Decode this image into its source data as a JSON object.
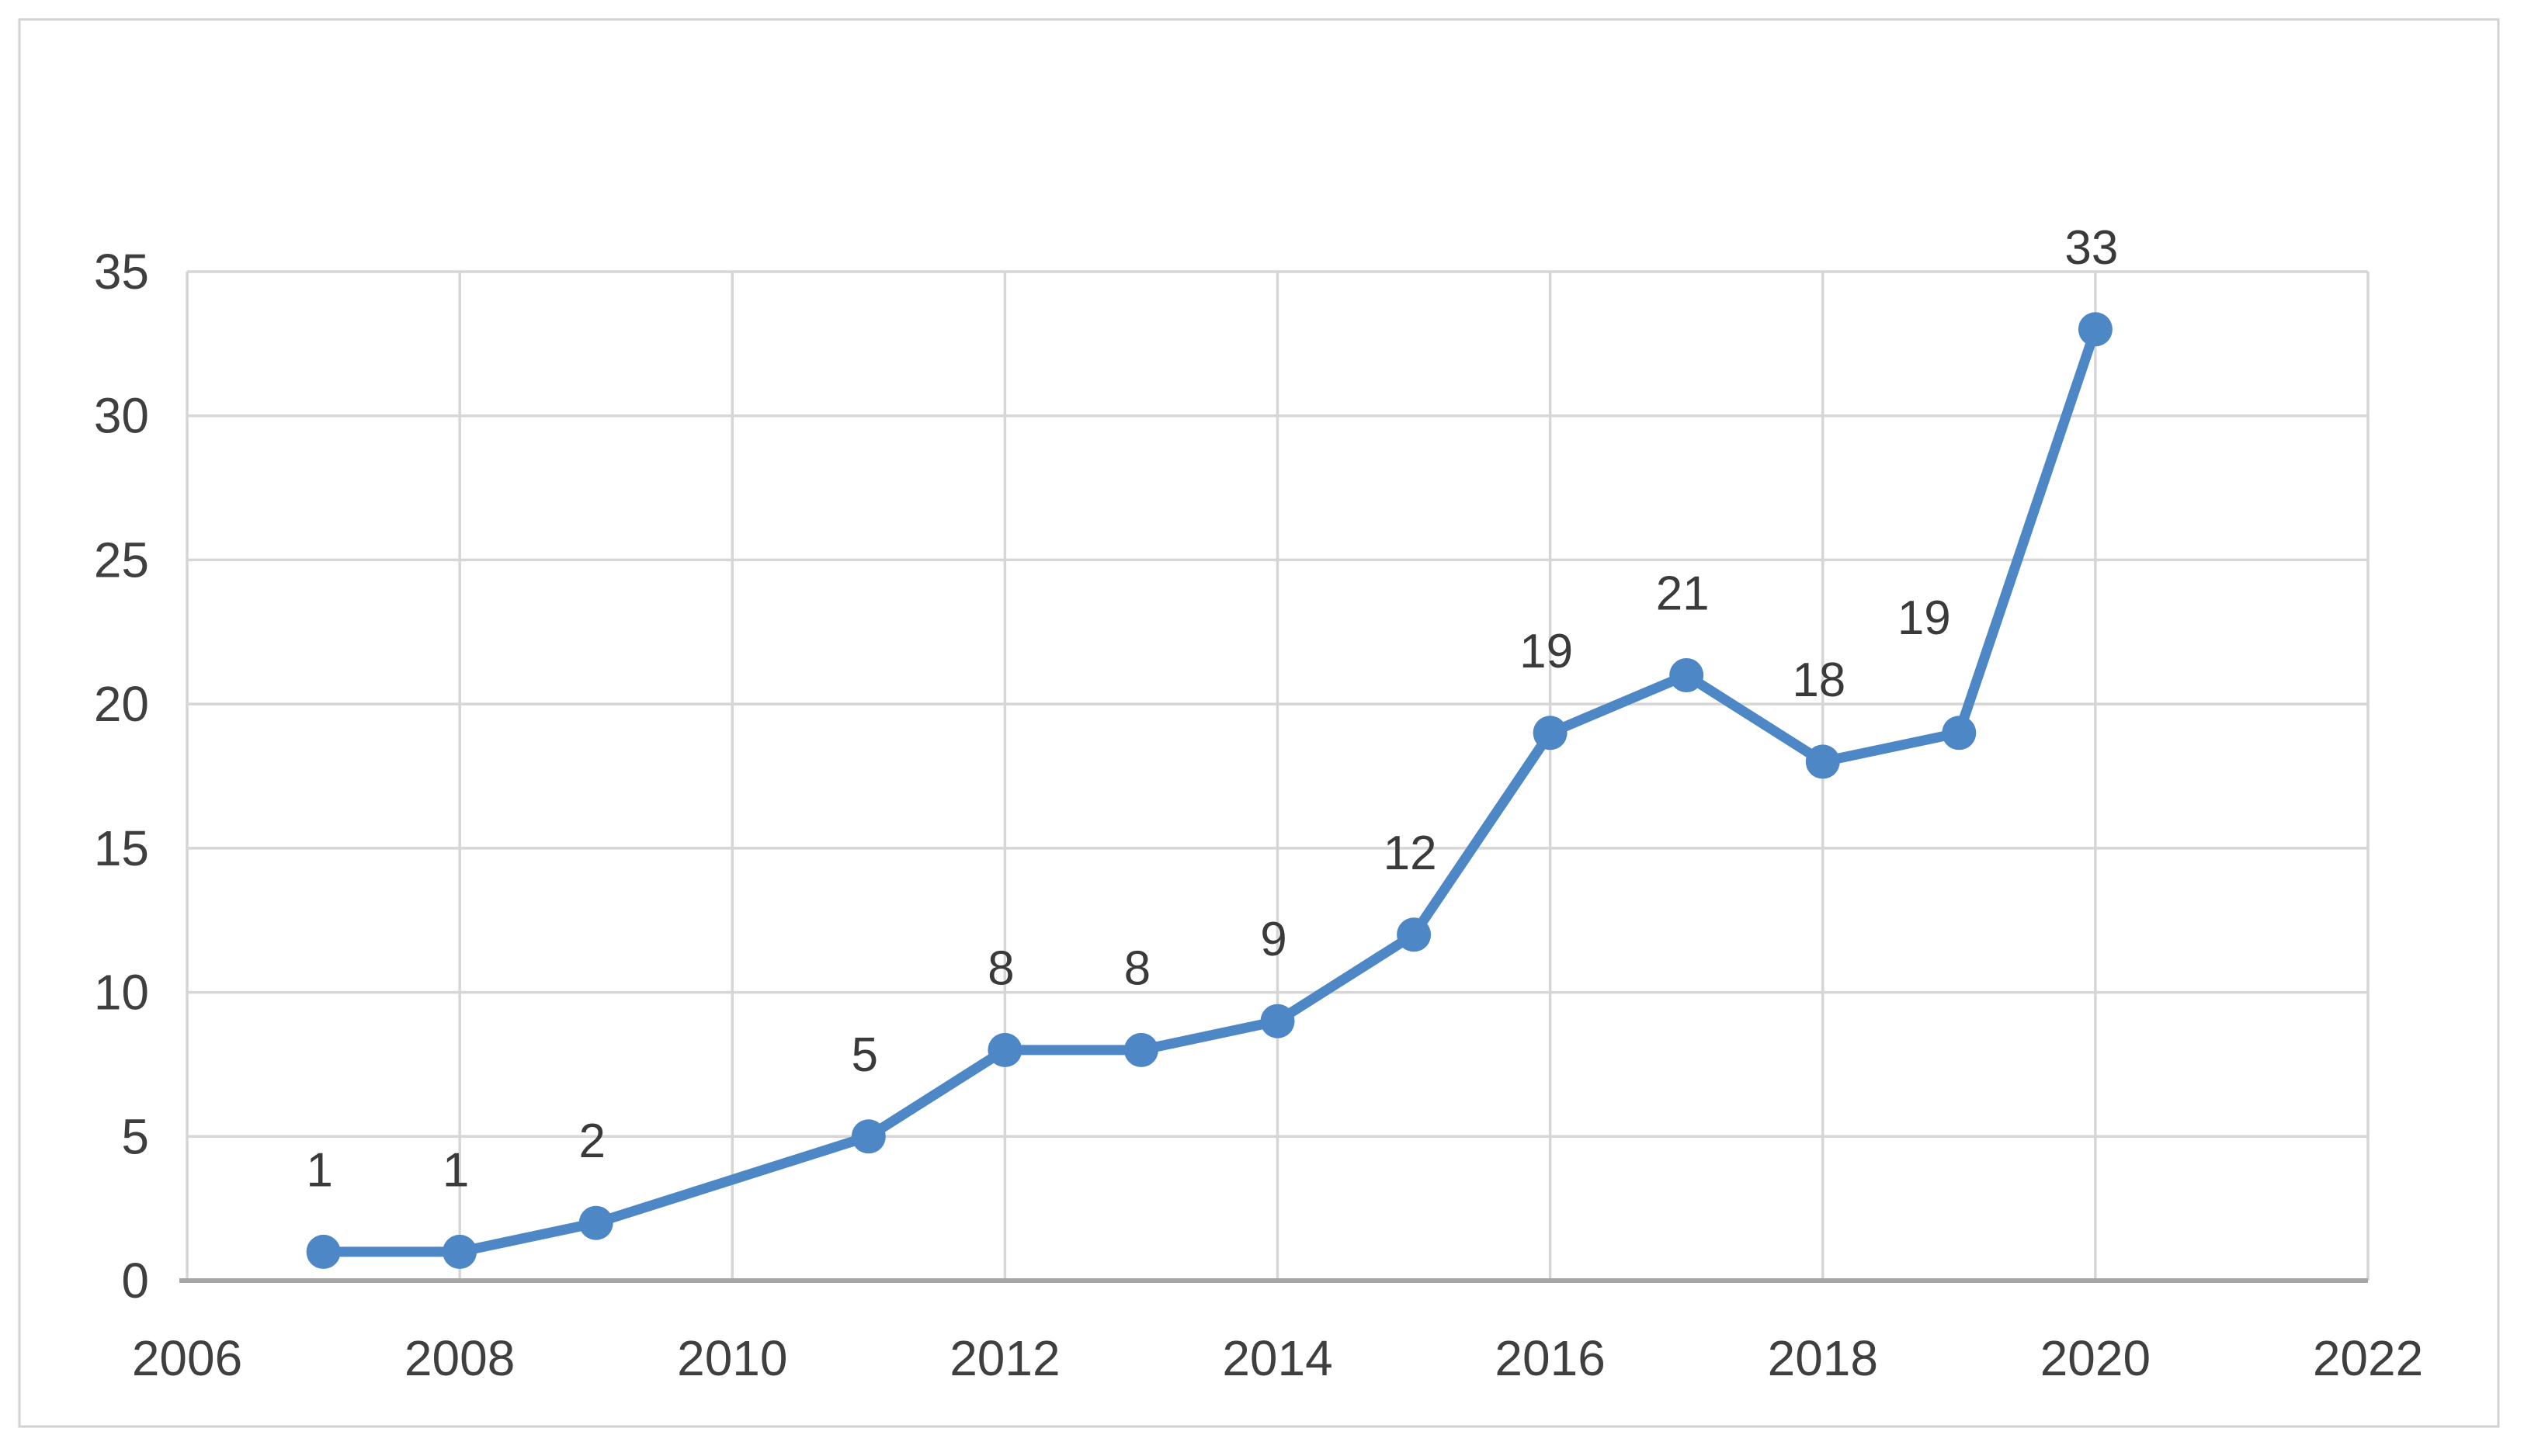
{
  "figure": {
    "background_color": "#ffffff",
    "border_color": "#d2d2d2"
  },
  "chart_data": {
    "type": "line",
    "title": "",
    "xlabel": "",
    "ylabel": "",
    "series": [
      {
        "name": "publications-per-year",
        "points": [
          {
            "x": 2007,
            "y": 1
          },
          {
            "x": 2008,
            "y": 1
          },
          {
            "x": 2009,
            "y": 2
          },
          {
            "x": 2011,
            "y": 5
          },
          {
            "x": 2012,
            "y": 8
          },
          {
            "x": 2013,
            "y": 8
          },
          {
            "x": 2014,
            "y": 9
          },
          {
            "x": 2015,
            "y": 12
          },
          {
            "x": 2016,
            "y": 19
          },
          {
            "x": 2017,
            "y": 21
          },
          {
            "x": 2018,
            "y": 18
          },
          {
            "x": 2019,
            "y": 19
          },
          {
            "x": 2020,
            "y": 33
          }
        ],
        "data_labels": [
          "1",
          "1",
          "2",
          "5",
          "8",
          "8",
          "9",
          "12",
          "19",
          "21",
          "18",
          "19",
          "33"
        ]
      }
    ],
    "xlim": [
      2006,
      2022
    ],
    "ylim": [
      0,
      35
    ],
    "x_ticks": [
      "2006",
      "2008",
      "2010",
      "2012",
      "2014",
      "2016",
      "2018",
      "2020",
      "2022"
    ],
    "y_ticks": [
      "0",
      "5",
      "10",
      "15",
      "20",
      "25",
      "30",
      "35"
    ],
    "grid": true,
    "legend": false,
    "colors": {
      "line": "#4e87c5",
      "marker": "#4e87c5",
      "gridline": "#d6d6d6",
      "axis_line": "#a6a6a6",
      "tick_text": "#3f3f3f",
      "data_label_text": "#3a3a3a"
    }
  }
}
